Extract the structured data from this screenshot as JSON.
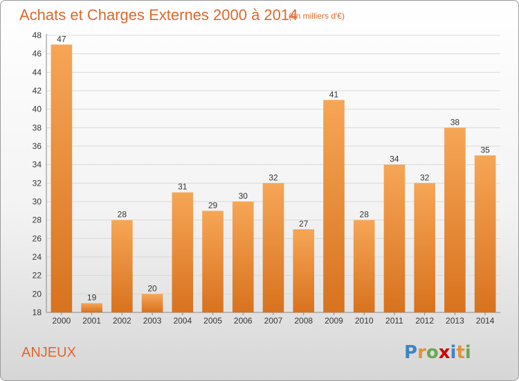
{
  "title": "Achats et Charges Externes 2000 à 2014",
  "subtitle": "(en milliers d'€)",
  "commune": "ANJEUX",
  "logo": {
    "text": "Proxiti",
    "letters": [
      {
        "ch": "P",
        "color": "#3d85c6"
      },
      {
        "ch": "r",
        "color": "#e69138"
      },
      {
        "ch": "o",
        "color": "#6aa84f"
      },
      {
        "ch": "x",
        "color": "#cc0000"
      },
      {
        "ch": "i",
        "color": "#3d85c6"
      },
      {
        "ch": "t",
        "color": "#e69138"
      },
      {
        "ch": "i",
        "color": "#6aa84f"
      }
    ]
  },
  "colors": {
    "bar_light": "#f6a656",
    "bar_dark": "#d8721e",
    "title": "#e0672a",
    "grid": "#d9d9d9"
  },
  "chart_data": {
    "type": "bar",
    "title": "Achats et Charges Externes 2000 à 2014",
    "subtitle": "(en milliers d'€)",
    "categories": [
      "2000",
      "2001",
      "2002",
      "2003",
      "2004",
      "2005",
      "2006",
      "2007",
      "2008",
      "2009",
      "2010",
      "2011",
      "2012",
      "2013",
      "2014"
    ],
    "values": [
      47,
      19,
      28,
      20,
      31,
      29,
      30,
      32,
      27,
      41,
      28,
      34,
      32,
      38,
      35
    ],
    "ylim": [
      18,
      48
    ],
    "yticks": [
      18,
      20,
      22,
      24,
      26,
      28,
      30,
      32,
      34,
      36,
      38,
      40,
      42,
      44,
      46,
      48
    ],
    "grid": true,
    "xlabel": "",
    "ylabel": ""
  }
}
